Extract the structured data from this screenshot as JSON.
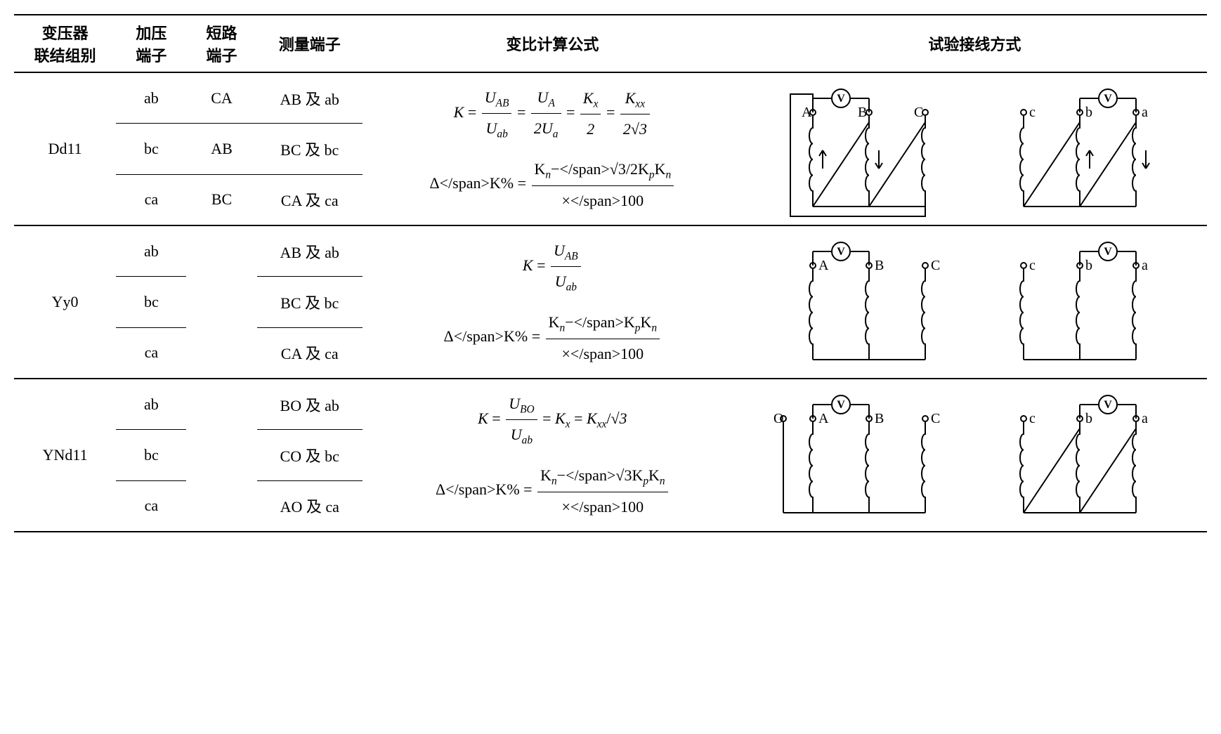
{
  "headers": {
    "col1_l1": "变压器",
    "col1_l2": "联结组别",
    "col2_l1": "加压",
    "col2_l2": "端子",
    "col3_l1": "短路",
    "col3_l2": "端子",
    "col4": "测量端子",
    "col5": "变比计算公式",
    "col6": "试验接线方式"
  },
  "groups": [
    {
      "name": "Dd11",
      "rows": [
        {
          "press": "ab",
          "short": "CA",
          "meas": "AB 及 ab"
        },
        {
          "press": "bc",
          "short": "AB",
          "meas": "BC 及 bc"
        },
        {
          "press": "ca",
          "short": "BC",
          "meas": "CA 及 ca"
        }
      ],
      "formula_id": "f1",
      "diagram_id": "d1"
    },
    {
      "name": "Yy0",
      "rows": [
        {
          "press": "ab",
          "short": "",
          "meas": "AB 及 ab"
        },
        {
          "press": "bc",
          "short": "",
          "meas": "BC 及 bc"
        },
        {
          "press": "ca",
          "short": "",
          "meas": "CA 及 ca"
        }
      ],
      "short_merged": true,
      "formula_id": "f2",
      "diagram_id": "d2"
    },
    {
      "name": "YNd11",
      "rows": [
        {
          "press": "ab",
          "short": "",
          "meas": "BO 及 ab"
        },
        {
          "press": "bc",
          "short": "",
          "meas": "CO 及 bc"
        },
        {
          "press": "ca",
          "short": "",
          "meas": "AO 及 ca"
        }
      ],
      "short_merged": true,
      "formula_id": "f3",
      "diagram_id": "d3"
    }
  ],
  "formulas": {
    "f1": {
      "line1_parts": [
        "K",
        "=",
        {
          "num": "U_AB",
          "den": "U_ab"
        },
        "=",
        {
          "num": "U_A",
          "den": "2U_a"
        },
        "=",
        {
          "num": "K_x",
          "den": "2"
        },
        "=",
        {
          "num": "K_xx",
          "den": "2√3"
        }
      ],
      "line2_parts": [
        "ΔK%",
        "=",
        {
          "num": "K_n−√3/2K_p",
          "den": "K_n"
        },
        "×100"
      ]
    },
    "f2": {
      "line1_parts": [
        "K",
        "=",
        {
          "num": "U_AB",
          "den": "U_ab"
        }
      ],
      "line2_parts": [
        "ΔK%",
        "=",
        {
          "num": "K_n−K_p",
          "den": "K_n"
        },
        "×100"
      ]
    },
    "f3": {
      "line1_parts": [
        "K",
        "=",
        {
          "num": "U_BO",
          "den": "U_ab"
        },
        "=",
        "K_x",
        "=",
        "K_xx",
        "/√3"
      ],
      "line2_parts": [
        "ΔK%",
        "=",
        {
          "num": "K_n−√3K_p",
          "den": "K_n"
        },
        "×100"
      ]
    }
  },
  "diagrams": {
    "d1": {
      "primary": {
        "type": "delta",
        "labels": [
          "A",
          "B",
          "C"
        ],
        "label_side": "top",
        "meter_between": [
          0,
          1
        ],
        "arrows": [
          1,
          -1,
          0
        ],
        "short_loop": true
      },
      "secondary": {
        "type": "delta",
        "labels": [
          "c",
          "b",
          "a"
        ],
        "label_side": "mid",
        "meter_between": [
          1,
          2
        ],
        "arrows": [
          0,
          1,
          -1
        ]
      }
    },
    "d2": {
      "primary": {
        "type": "wye",
        "labels": [
          "A",
          "B",
          "C"
        ],
        "label_side": "mid",
        "meter_between": [
          0,
          1
        ],
        "neutral": false
      },
      "secondary": {
        "type": "wye",
        "labels": [
          "c",
          "b",
          "a"
        ],
        "label_side": "mid",
        "meter_between": [
          1,
          2
        ],
        "neutral": false
      }
    },
    "d3": {
      "primary": {
        "type": "wye",
        "labels": [
          "A",
          "B",
          "C"
        ],
        "label_side": "mid",
        "meter_between": [
          0,
          1
        ],
        "neutral": true,
        "neutral_label": "O"
      },
      "secondary": {
        "type": "delta",
        "labels": [
          "c",
          "b",
          "a"
        ],
        "label_side": "mid",
        "meter_between": [
          1,
          2
        ],
        "arrows": [
          0,
          0,
          0
        ]
      }
    }
  },
  "style": {
    "stroke": "#000000",
    "stroke_width": 2,
    "font": "serif",
    "coil_turns": 4,
    "coil_radius": 5,
    "terminal_radius": 4,
    "meter_radius": 13
  }
}
